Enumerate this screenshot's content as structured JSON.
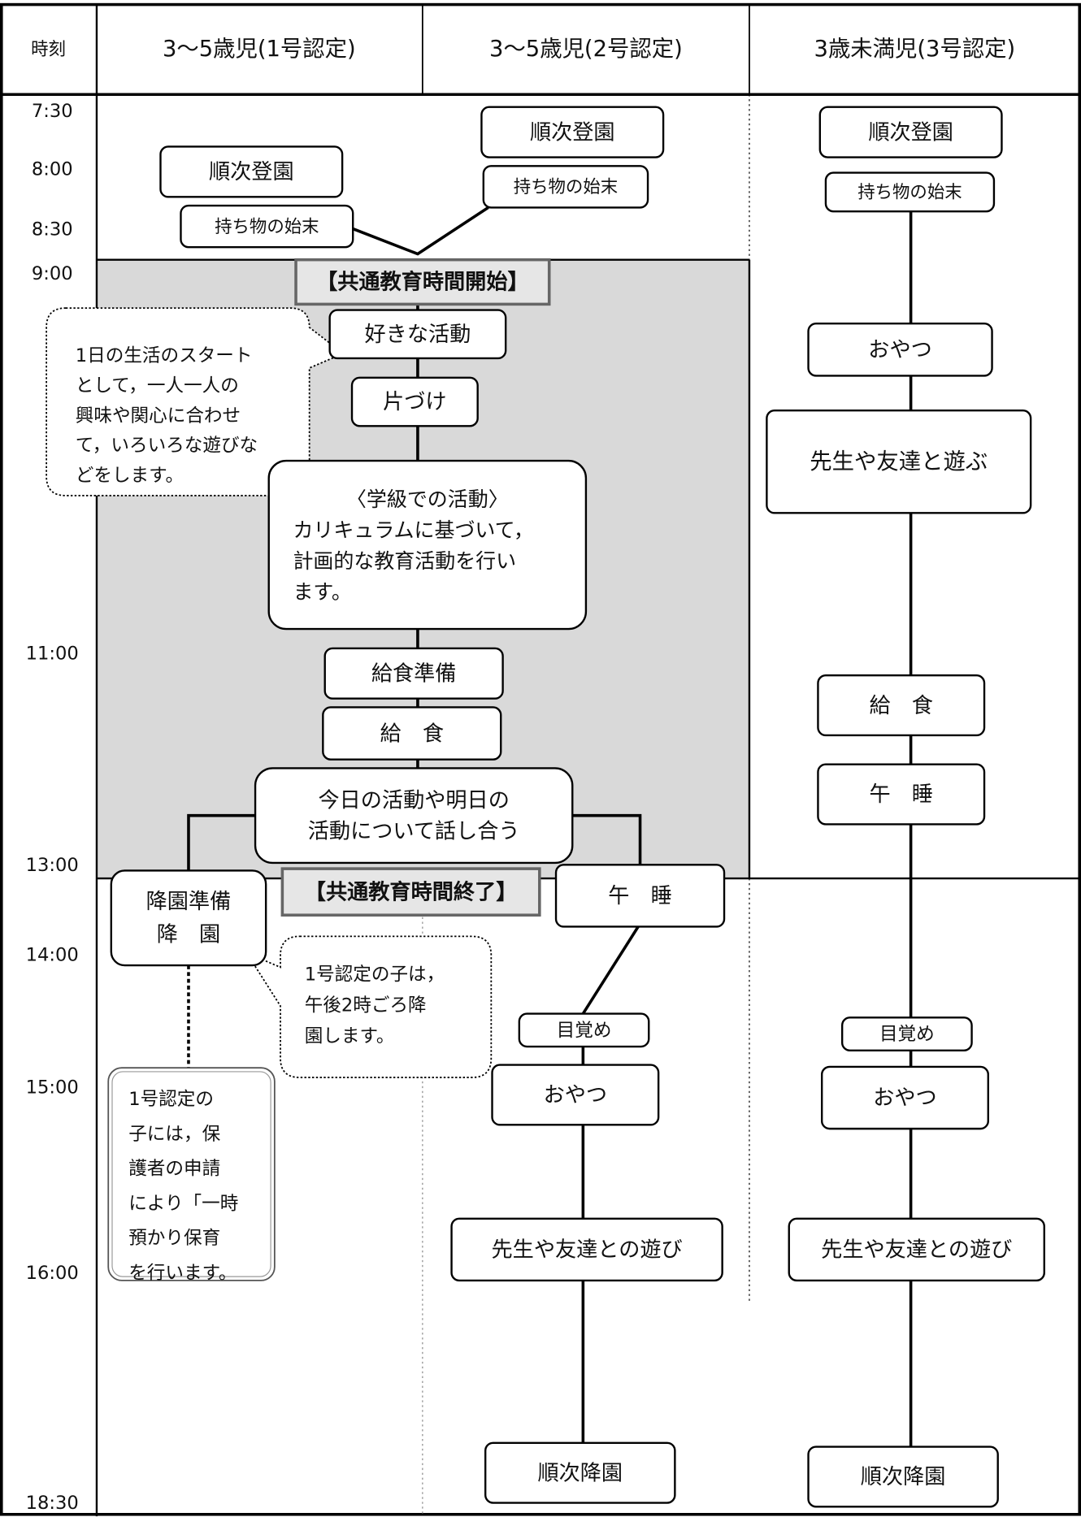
{
  "header": {
    "time": "時刻",
    "columns": [
      "3～5歳児(1号認定)",
      "3～5歳児(2号認定)",
      "3歳未満児(3号認定)"
    ]
  },
  "times": [
    "7:30",
    "8:00",
    "8:30",
    "9:00",
    "11:00",
    "13:00",
    "14:00",
    "15:00",
    "16:00",
    "18:30"
  ],
  "col1": {
    "arrival": "順次登園",
    "belongings": "持ち物の始末",
    "dismissal": [
      "降園準備",
      "降　園"
    ]
  },
  "col2": {
    "arrival": "順次登園",
    "belongings": "持ち物の始末",
    "nap": "午　睡",
    "wake": "目覚め",
    "snack": "おやつ",
    "play": "先生や友達との遊び",
    "departure": "順次降園"
  },
  "col3": {
    "arrival": "順次登園",
    "belongings": "持ち物の始末",
    "snack": "おやつ",
    "play": "先生や友達と遊ぶ",
    "lunch": "給　食",
    "nap": "午　睡",
    "wake": "目覚め",
    "snack2": "おやつ",
    "play2": "先生や友達との遊び",
    "departure": "順次降園"
  },
  "common": {
    "start": "【共通教育時間開始】",
    "free_play": "好きな活動",
    "cleanup": "片づけ",
    "class_activity": [
      "〈学級での活動〉",
      "カリキュラムに基づいて，",
      "計画的な教育活動を行い",
      "ます。"
    ],
    "lunch_prep": "給食準備",
    "lunch": "給　食",
    "review": [
      "今日の活動や明日の",
      "活動について話し合う"
    ],
    "end": "【共通教育時間終了】"
  },
  "notes": {
    "free_play": [
      "1日の生活のスタート",
      "として，一人一人の",
      "興味や関心に合わせ",
      "て，いろいろな遊びな",
      "どをします。"
    ],
    "pickup": [
      "1号認定の子は，",
      "午後2時ごろ降",
      "園します。"
    ],
    "temporary_care": [
      "1号認定の",
      "子には，保",
      "護者の申請",
      "により「一時",
      "預かり保育",
      "を行います。"
    ]
  }
}
